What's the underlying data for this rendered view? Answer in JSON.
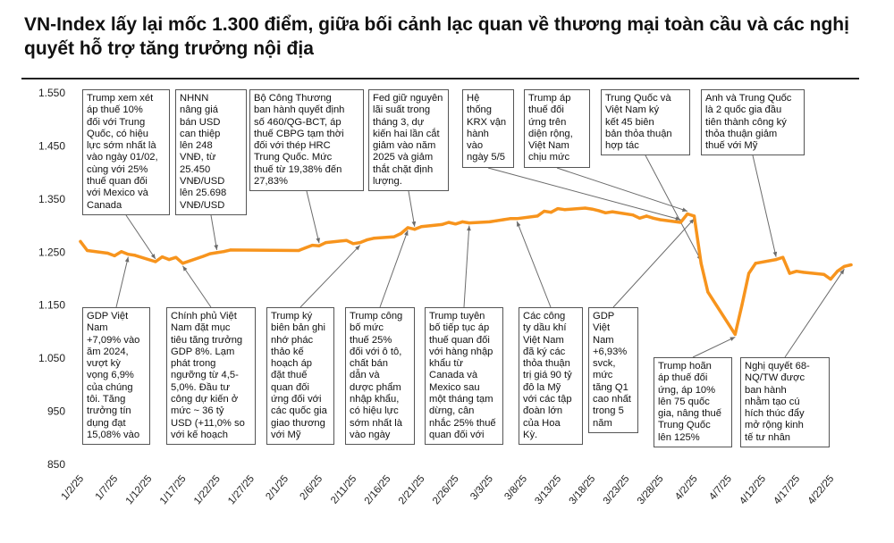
{
  "title": "VN-Index lấy lại mốc 1.300 điểm, giữa bối cảnh lạc quan về thương mại toàn cầu và các nghị quyết hỗ trợ tăng trưởng nội địa",
  "chart_data": {
    "type": "line",
    "line_color": "#F7941D",
    "ylim": [
      850,
      1550
    ],
    "yticks": [
      850,
      950,
      1050,
      1150,
      1250,
      1350,
      1450,
      1550
    ],
    "ytick_labels": [
      "850",
      "950",
      "1.050",
      "1.150",
      "1.250",
      "1.350",
      "1.450",
      "1.550"
    ],
    "xticks": [
      "1/2/25",
      "1/7/25",
      "1/12/25",
      "1/17/25",
      "1/22/25",
      "1/27/25",
      "2/1/25",
      "2/6/25",
      "2/11/25",
      "2/16/25",
      "2/21/25",
      "2/26/25",
      "3/3/25",
      "3/8/25",
      "3/13/25",
      "3/18/25",
      "3/23/25",
      "3/28/25",
      "4/2/25",
      "4/7/25",
      "4/12/25",
      "4/17/25",
      "4/22/25"
    ],
    "grid": false,
    "legend": "none",
    "series": [
      {
        "x": [
          "2025-01-02",
          "2025-01-03",
          "2025-01-06",
          "2025-01-07",
          "2025-01-08",
          "2025-01-09",
          "2025-01-10",
          "2025-01-13",
          "2025-01-14",
          "2025-01-15",
          "2025-01-16",
          "2025-01-17",
          "2025-01-20",
          "2025-01-21",
          "2025-01-22",
          "2025-01-23",
          "2025-01-24",
          "2025-02-03",
          "2025-02-04",
          "2025-02-05",
          "2025-02-06",
          "2025-02-07",
          "2025-02-10",
          "2025-02-11",
          "2025-02-12",
          "2025-02-13",
          "2025-02-14",
          "2025-02-17",
          "2025-02-18",
          "2025-02-19",
          "2025-02-20",
          "2025-02-21",
          "2025-02-24",
          "2025-02-25",
          "2025-02-26",
          "2025-02-27",
          "2025-02-28",
          "2025-03-03",
          "2025-03-04",
          "2025-03-05",
          "2025-03-06",
          "2025-03-07",
          "2025-03-10",
          "2025-03-11",
          "2025-03-12",
          "2025-03-13",
          "2025-03-14",
          "2025-03-17",
          "2025-03-18",
          "2025-03-19",
          "2025-03-20",
          "2025-03-21",
          "2025-03-24",
          "2025-03-25",
          "2025-03-26",
          "2025-03-27",
          "2025-03-28",
          "2025-03-31",
          "2025-04-01",
          "2025-04-02",
          "2025-04-03",
          "2025-04-04",
          "2025-04-08",
          "2025-04-09",
          "2025-04-10",
          "2025-04-11",
          "2025-04-14",
          "2025-04-15",
          "2025-04-16",
          "2025-04-17",
          "2025-04-18",
          "2025-04-21",
          "2025-04-22",
          "2025-04-23",
          "2025-04-24",
          "2025-04-25"
        ],
        "values": [
          1270,
          1253,
          1248,
          1243,
          1251,
          1246,
          1244,
          1232,
          1241,
          1236,
          1240,
          1229,
          1242,
          1247,
          1249,
          1251,
          1254,
          1253,
          1258,
          1263,
          1262,
          1268,
          1272,
          1266,
          1268,
          1273,
          1276,
          1279,
          1285,
          1296,
          1293,
          1298,
          1302,
          1306,
          1303,
          1307,
          1305,
          1307,
          1309,
          1311,
          1313,
          1313,
          1318,
          1327,
          1325,
          1332,
          1330,
          1333,
          1331,
          1328,
          1324,
          1326,
          1320,
          1314,
          1318,
          1314,
          1311,
          1306,
          1322,
          1318,
          1229,
          1175,
          1095,
          1150,
          1210,
          1229,
          1236,
          1240,
          1210,
          1214,
          1212,
          1208,
          1199,
          1214,
          1223,
          1226
        ]
      }
    ],
    "annotations": [
      {
        "text": "Trump xem xét\náp thuế 10%\nđối với Trung\nQuốc, có hiệu\nlực sớm nhất là\nvào ngày 01/02,\ncùng với 25%\nthuế quan đối\nvới Mexico và\nCanada",
        "date": "2025-01-13"
      },
      {
        "text": "NHNN\nnâng giá\nbán USD\ncan thiệp\nlên 248\nVNĐ, từ\n25.450\nVNĐ/USD\nlên 25.698\nVNĐ/USD",
        "date": "2025-01-22"
      },
      {
        "text": "Bộ Công Thương\nban hành quyết định\nsố 460/QG-BCT, áp\nthuế CBPG tạm thời\nđối với thép HRC\nTrung Quốc. Mức\nthuế từ 19,38% đến\n27,83%",
        "date": "2025-02-06"
      },
      {
        "text": "Fed giữ nguyên\nlãi suất trong\ntháng 3, dự\nkiến hai lần cắt\ngiảm vào năm\n2025 và giảm\nthắt chặt định\nlượng.",
        "date": "2025-02-20"
      },
      {
        "text": "Hệ\nthống\nKRX vận\nhành\nvào\nngày 5/5",
        "date": "2025-03-31"
      },
      {
        "text": "Trump áp\nthuế đối\nứng trên\ndiện rộng,\nViệt Nam\nchịu mức",
        "date": "2025-04-01"
      },
      {
        "text": "Trung Quốc và\nViệt Nam ký\nkết 45 biên\nbản thỏa thuận\nhợp tác",
        "date": "2025-04-03"
      },
      {
        "text": "Anh và Trung Quốc\nlà 2 quốc gia đầu\ntiên thành công ký\nthỏa thuận giảm\nthuế với Mỹ",
        "date": "2025-04-14"
      },
      {
        "text": "GDP Việt\nNam\n+7,09% vào\năm 2024,\nvượt kỳ\nvọng 6,9%\ncủa chúng\ntôi. Tăng\ntrưởng tín\ndụng đạt\n15,08% vào",
        "date": "2025-01-09"
      },
      {
        "text": "Chính phủ Việt\nNam đặt mục\ntiêu tăng trưởng\nGDP 8%. Lạm\nphát trong\nngưỡng từ 4,5-\n5,0%. Đầu tư\ncông dự kiến ở\nmức ~ 36 tỷ\nUSD (+11,0% so\nvới kế hoạch",
        "date": "2025-01-17"
      },
      {
        "text": "Trump ký\nbiên bản ghi\nnhớ phác\nthảo kế\nhoạch áp\nđặt thuế\nquan đối\nứng đối với\ncác quốc gia\ngiao thương\nvới Mỹ",
        "date": "2025-02-12"
      },
      {
        "text": "Trump công\nbố mức\nthuế 25%\nđối với ô tô,\nchất bán\ndẫn và\ndược phẩm\nnhập khẩu,\ncó hiệu lực\nsớm nhất là\nvào ngày",
        "date": "2025-02-19"
      },
      {
        "text": "Trump tuyên\nbố tiếp tục áp\nthuế quan đối\nvới hàng nhập\nkhẩu từ\nCanada và\nMexico sau\nmột tháng tạm\ndừng, cân\nnhắc 25% thuế\nquan đối với",
        "date": "2025-02-28"
      },
      {
        "text": "Các công\nty dầu khí\nViệt Nam\nđã ký các\nthỏa thuận\ntrị giá 90 tỷ\nđô la Mỹ\nvới các tập\nđoàn lớn\ncủa Hoa\nKỳ.",
        "date": "2025-03-07"
      },
      {
        "text": "GDP\nViệt\nNam\n+6,93%\nsvck,\nmức\ntăng Q1\ncao nhất\ntrong 5\nnăm",
        "date": "2025-04-02"
      },
      {
        "text": "Trump hoãn\náp thuế đối\nứng, áp 10%\nlên 75 quốc\ngia, nâng thuế\nTrung Quốc\nlên 125%",
        "date": "2025-04-08"
      },
      {
        "text": "Nghị quyết 68-\nNQ/TW được\nban hành\nnhằm tạo cú\nhích thúc đẩy\nmở rộng kinh\ntế tư nhân",
        "date": "2025-04-24"
      }
    ]
  }
}
